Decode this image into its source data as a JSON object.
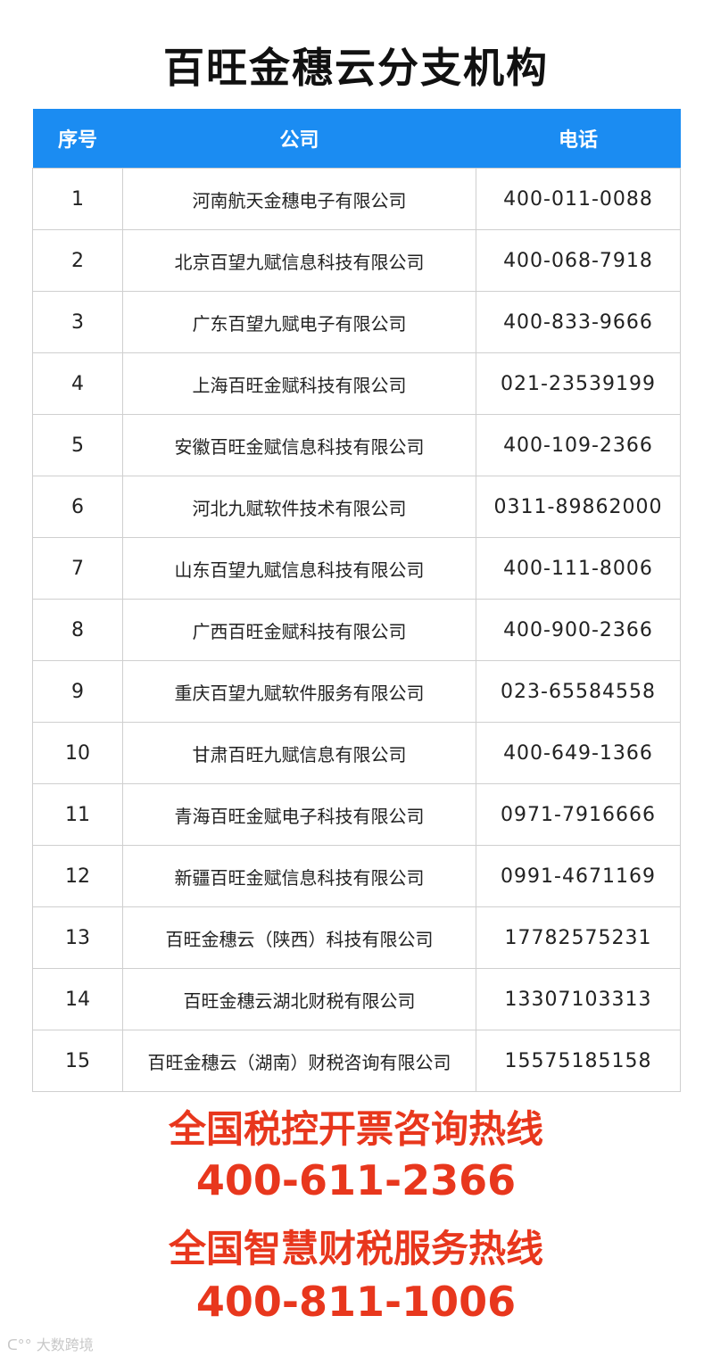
{
  "title": "百旺金穗云分支机构",
  "table": {
    "headers": [
      "序号",
      "公司",
      "电话"
    ],
    "rows": [
      [
        "1",
        "河南航天金穗电子有限公司",
        "400-011-0088"
      ],
      [
        "2",
        "北京百望九赋信息科技有限公司",
        "400-068-7918"
      ],
      [
        "3",
        "广东百望九赋电子有限公司",
        "400-833-9666"
      ],
      [
        "4",
        "上海百旺金赋科技有限公司",
        "021-23539199"
      ],
      [
        "5",
        "安徽百旺金赋信息科技有限公司",
        "400-109-2366"
      ],
      [
        "6",
        "河北九赋软件技术有限公司",
        "0311-89862000"
      ],
      [
        "7",
        "山东百望九赋信息科技有限公司",
        "400-111-8006"
      ],
      [
        "8",
        "广西百旺金赋科技有限公司",
        "400-900-2366"
      ],
      [
        "9",
        "重庆百望九赋软件服务有限公司",
        "023-65584558"
      ],
      [
        "10",
        "甘肃百旺九赋信息有限公司",
        "400-649-1366"
      ],
      [
        "11",
        "青海百旺金赋电子科技有限公司",
        "0971-7916666"
      ],
      [
        "12",
        "新疆百旺金赋信息科技有限公司",
        "0991-4671169"
      ],
      [
        "13",
        "百旺金穗云（陕西）科技有限公司",
        "17782575231"
      ],
      [
        "14",
        "百旺金穗云湖北财税有限公司",
        "13307103313"
      ],
      [
        "15",
        "百旺金穗云（湖南）财税咨询有限公司",
        "15575185158"
      ]
    ]
  },
  "hotlines": {
    "tax_label": "全国税控开票咨询热线",
    "tax_number": "400-611-2366",
    "smart_label": "全国智慧财税服务热线",
    "smart_number": "400-811-1006"
  },
  "watermark": "大数跨境",
  "colors": {
    "header": "#1b8cf2",
    "hotline": "#e8371d"
  }
}
